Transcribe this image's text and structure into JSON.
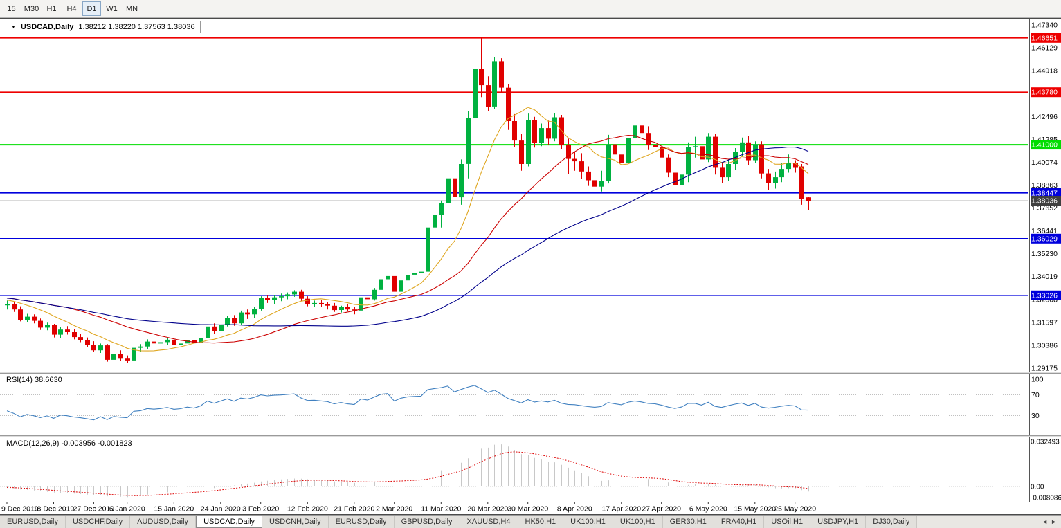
{
  "app": {
    "timeframe_toolbar": {
      "buttons": [
        "15",
        "M30",
        "H1",
        "H4",
        "D1",
        "W1",
        "MN"
      ],
      "active": "D1"
    },
    "chart_header": {
      "collapse_icon": "▼",
      "symbol": "USDCAD,Daily",
      "ohlc": "1.38212 1.38220 1.37563 1.38036"
    },
    "tab_bar": {
      "tabs": [
        "EURUSD,Daily",
        "USDCHF,Daily",
        "AUDUSD,Daily",
        "USDCAD,Daily",
        "USDCNH,Daily",
        "EURUSD,Daily",
        "GBPUSD,Daily",
        "XAUUSD,H4",
        "HK50,H1",
        "UK100,H1",
        "UK100,H1",
        "GER30,H1",
        "FRA40,H1",
        "USOil,H1",
        "USDJPY,H1",
        "DJ30,Daily"
      ],
      "active_index": 3,
      "scroll_left": "◄",
      "scroll_right": "►"
    }
  },
  "chart_data": {
    "type": "candlestick",
    "symbol": "USDCAD",
    "timeframe": "Daily",
    "colors": {
      "up": "#00b140",
      "down": "#e00000",
      "bg": "#ffffff"
    },
    "price_axis": {
      "min": 1.29175,
      "max": 1.4734,
      "ticks": [
        "1.47340",
        "1.46129",
        "1.44918",
        "1.43707",
        "1.42496",
        "1.41285",
        "1.40074",
        "1.38863",
        "1.37652",
        "1.36441",
        "1.35230",
        "1.34019",
        "1.32808",
        "1.31597",
        "1.30386",
        "1.29175"
      ]
    },
    "hlines": [
      {
        "price": 1.46651,
        "color": "#ee0000",
        "label": "1.46651",
        "width": 1.6
      },
      {
        "price": 1.4378,
        "color": "#ee0000",
        "label": "1.43780",
        "width": 1.6
      },
      {
        "price": 1.41,
        "color": "#00dd00",
        "label": "1.41000",
        "width": 2
      },
      {
        "price": 1.38447,
        "color": "#0000dd",
        "label": "1.38447",
        "width": 1.6
      },
      {
        "price": 1.36029,
        "color": "#0000dd",
        "label": "1.36029",
        "width": 1.6
      },
      {
        "price": 1.33026,
        "color": "#0000dd",
        "label": "1.33026",
        "width": 1.6
      }
    ],
    "current_price": {
      "price": 1.38036,
      "label": "1.38036",
      "badge_color": "#3f3f3f",
      "line_color": "#b4b4b4"
    },
    "moving_averages": [
      {
        "period": 10,
        "color": "#dfa620"
      },
      {
        "period": 25,
        "color": "#cc0000"
      },
      {
        "period": 50,
        "color": "#00008b"
      }
    ],
    "x_labels": [
      {
        "i": 0,
        "label": "9 Dec 2019"
      },
      {
        "i": 7,
        "label": "18 Dec 2019"
      },
      {
        "i": 13,
        "label": "27 Dec 2019"
      },
      {
        "i": 18,
        "label": "6 Jan 2020"
      },
      {
        "i": 25,
        "label": "15 Jan 2020"
      },
      {
        "i": 32,
        "label": "24 Jan 2020"
      },
      {
        "i": 38,
        "label": "3 Feb 2020"
      },
      {
        "i": 45,
        "label": "12 Feb 2020"
      },
      {
        "i": 52,
        "label": "21 Feb 2020"
      },
      {
        "i": 58,
        "label": "2 Mar 2020"
      },
      {
        "i": 65,
        "label": "11 Mar 2020"
      },
      {
        "i": 72,
        "label": "20 Mar 2020"
      },
      {
        "i": 78,
        "label": "30 Mar 2020"
      },
      {
        "i": 85,
        "label": "8 Apr 2020"
      },
      {
        "i": 92,
        "label": "17 Apr 2020"
      },
      {
        "i": 98,
        "label": "27 Apr 2020"
      },
      {
        "i": 105,
        "label": "6 May 2020"
      },
      {
        "i": 112,
        "label": "15 May 2020"
      },
      {
        "i": 118,
        "label": "25 May 2020"
      }
    ],
    "indicator_warmup": [
      1.3312,
      1.3298,
      1.332,
      1.3305,
      1.3288,
      1.331,
      1.3292,
      1.3275,
      1.3296,
      1.3282,
      1.3268,
      1.3288,
      1.3272,
      1.3285,
      1.3262
    ],
    "candles": [
      [
        1.325,
        1.3275,
        1.3228,
        1.3258
      ],
      [
        1.3258,
        1.327,
        1.3215,
        1.3228
      ],
      [
        1.3228,
        1.3245,
        1.3165,
        1.3172
      ],
      [
        1.3172,
        1.3205,
        1.316,
        1.319
      ],
      [
        1.319,
        1.3202,
        1.3155,
        1.3168
      ],
      [
        1.3168,
        1.318,
        1.312,
        1.3132
      ],
      [
        1.3132,
        1.3158,
        1.3118,
        1.3145
      ],
      [
        1.3145,
        1.3152,
        1.308,
        1.3095
      ],
      [
        1.3095,
        1.3135,
        1.3078,
        1.3122
      ],
      [
        1.3122,
        1.314,
        1.3095,
        1.3108
      ],
      [
        1.3108,
        1.3125,
        1.307,
        1.3082
      ],
      [
        1.3082,
        1.3098,
        1.3055,
        1.3065
      ],
      [
        1.3065,
        1.308,
        1.303,
        1.3042
      ],
      [
        1.3042,
        1.306,
        1.3005,
        1.3012
      ],
      [
        1.3012,
        1.3048,
        1.2998,
        1.3038
      ],
      [
        1.3038,
        1.3045,
        1.2952,
        1.2962
      ],
      [
        1.2962,
        1.3005,
        1.295,
        1.2992
      ],
      [
        1.2992,
        1.3012,
        1.2955,
        1.2968
      ],
      [
        1.2968,
        1.2985,
        1.2945,
        1.2958
      ],
      [
        1.2958,
        1.3032,
        1.2952,
        1.3025
      ],
      [
        1.3025,
        1.3045,
        1.3002,
        1.3032
      ],
      [
        1.3032,
        1.307,
        1.302,
        1.3058
      ],
      [
        1.3058,
        1.3072,
        1.3035,
        1.3048
      ],
      [
        1.3048,
        1.3065,
        1.3028,
        1.3055
      ],
      [
        1.3055,
        1.3078,
        1.304,
        1.3068
      ],
      [
        1.3068,
        1.3082,
        1.3028,
        1.3042
      ],
      [
        1.3042,
        1.306,
        1.3022,
        1.3048
      ],
      [
        1.3048,
        1.3075,
        1.3038,
        1.3065
      ],
      [
        1.3065,
        1.308,
        1.3042,
        1.3052
      ],
      [
        1.3052,
        1.3085,
        1.3045,
        1.3075
      ],
      [
        1.3075,
        1.3145,
        1.3068,
        1.3138
      ],
      [
        1.3138,
        1.3155,
        1.3098,
        1.3112
      ],
      [
        1.3112,
        1.3152,
        1.3105,
        1.3145
      ],
      [
        1.3145,
        1.3195,
        1.3138,
        1.3182
      ],
      [
        1.3182,
        1.3198,
        1.3142,
        1.3155
      ],
      [
        1.3155,
        1.3222,
        1.3148,
        1.3212
      ],
      [
        1.3212,
        1.3228,
        1.3178,
        1.3202
      ],
      [
        1.3202,
        1.3242,
        1.3182,
        1.3232
      ],
      [
        1.3232,
        1.3298,
        1.3222,
        1.3288
      ],
      [
        1.3288,
        1.3302,
        1.3262,
        1.3278
      ],
      [
        1.3278,
        1.3305,
        1.3258,
        1.3292
      ],
      [
        1.3292,
        1.3312,
        1.3272,
        1.3298
      ],
      [
        1.3298,
        1.3318,
        1.3282,
        1.3308
      ],
      [
        1.3308,
        1.333,
        1.3295,
        1.3322
      ],
      [
        1.3322,
        1.3332,
        1.3272,
        1.3285
      ],
      [
        1.3285,
        1.3298,
        1.3245,
        1.3258
      ],
      [
        1.3258,
        1.3275,
        1.324,
        1.3262
      ],
      [
        1.3262,
        1.3278,
        1.3242,
        1.3255
      ],
      [
        1.3255,
        1.3268,
        1.3228,
        1.3248
      ],
      [
        1.3248,
        1.3262,
        1.3215,
        1.3225
      ],
      [
        1.3225,
        1.3248,
        1.3212,
        1.3242
      ],
      [
        1.3242,
        1.3255,
        1.3218,
        1.3228
      ],
      [
        1.3228,
        1.3242,
        1.3202,
        1.3222
      ],
      [
        1.3222,
        1.3302,
        1.3215,
        1.3292
      ],
      [
        1.3292,
        1.3305,
        1.3262,
        1.3282
      ],
      [
        1.3282,
        1.3342,
        1.3275,
        1.3332
      ],
      [
        1.3332,
        1.3398,
        1.3322,
        1.3388
      ],
      [
        1.3388,
        1.3465,
        1.3378,
        1.3405
      ],
      [
        1.3405,
        1.3422,
        1.3305,
        1.3322
      ],
      [
        1.3322,
        1.3395,
        1.3312,
        1.3382
      ],
      [
        1.3382,
        1.3425,
        1.3342,
        1.3412
      ],
      [
        1.3412,
        1.3448,
        1.3388,
        1.3422
      ],
      [
        1.3422,
        1.3468,
        1.3402,
        1.3428
      ],
      [
        1.3428,
        1.372,
        1.3418,
        1.3662
      ],
      [
        1.3662,
        1.3748,
        1.3555,
        1.3728
      ],
      [
        1.3728,
        1.3805,
        1.3662,
        1.3792
      ],
      [
        1.3792,
        1.3998,
        1.3758,
        1.3922
      ],
      [
        1.3922,
        1.3952,
        1.3802,
        1.3822
      ],
      [
        1.3822,
        1.4022,
        1.3782,
        1.3998
      ],
      [
        1.3998,
        1.428,
        1.3922,
        1.4242
      ],
      [
        1.4242,
        1.4542,
        1.4182,
        1.4502
      ],
      [
        1.4502,
        1.4668,
        1.4352,
        1.4415
      ],
      [
        1.4415,
        1.4462,
        1.4278,
        1.4302
      ],
      [
        1.4302,
        1.4565,
        1.4288,
        1.4542
      ],
      [
        1.4542,
        1.4558,
        1.4378,
        1.4402
      ],
      [
        1.4402,
        1.4422,
        1.4178,
        1.4225
      ],
      [
        1.4225,
        1.4262,
        1.4088,
        1.4122
      ],
      [
        1.4122,
        1.4158,
        1.3962,
        1.3998
      ],
      [
        1.3998,
        1.4265,
        1.3985,
        1.4232
      ],
      [
        1.4232,
        1.4248,
        1.4085,
        1.4108
      ],
      [
        1.4108,
        1.4212,
        1.4092,
        1.4188
      ],
      [
        1.4188,
        1.4228,
        1.4098,
        1.4132
      ],
      [
        1.4132,
        1.4268,
        1.4118,
        1.4245
      ],
      [
        1.4245,
        1.4258,
        1.4078,
        1.4098
      ],
      [
        1.4098,
        1.4132,
        1.3945,
        1.4025
      ],
      [
        1.4025,
        1.4062,
        1.3962,
        1.4012
      ],
      [
        1.4012,
        1.4055,
        1.3918,
        1.3958
      ],
      [
        1.3958,
        1.3985,
        1.3882,
        1.3912
      ],
      [
        1.3912,
        1.3998,
        1.3858,
        1.3878
      ],
      [
        1.3878,
        1.3962,
        1.3852,
        1.3908
      ],
      [
        1.3908,
        1.4152,
        1.3895,
        1.4102
      ],
      [
        1.4102,
        1.4175,
        1.4022,
        1.4048
      ],
      [
        1.4048,
        1.4098,
        1.3952,
        1.4002
      ],
      [
        1.4002,
        1.4172,
        1.3988,
        1.4135
      ],
      [
        1.4135,
        1.4268,
        1.4112,
        1.4202
      ],
      [
        1.4202,
        1.4232,
        1.4102,
        1.4162
      ],
      [
        1.4162,
        1.4198,
        1.4072,
        1.4098
      ],
      [
        1.4098,
        1.4118,
        1.3992,
        1.4088
      ],
      [
        1.4088,
        1.4108,
        1.4002,
        1.4032
      ],
      [
        1.4032,
        1.4048,
        1.3928,
        1.3952
      ],
      [
        1.3952,
        1.4018,
        1.3862,
        1.3888
      ],
      [
        1.3888,
        1.3988,
        1.3848,
        1.3942
      ],
      [
        1.3942,
        1.4112,
        1.3902,
        1.4088
      ],
      [
        1.4088,
        1.4142,
        1.4032,
        1.4092
      ],
      [
        1.4092,
        1.4118,
        1.3988,
        1.4022
      ],
      [
        1.4022,
        1.4162,
        1.4008,
        1.4142
      ],
      [
        1.4142,
        1.4158,
        1.3942,
        1.3978
      ],
      [
        1.3978,
        1.4002,
        1.3898,
        1.3928
      ],
      [
        1.3928,
        1.4025,
        1.3908,
        1.3998
      ],
      [
        1.3998,
        1.4082,
        1.3968,
        1.4062
      ],
      [
        1.4062,
        1.4138,
        1.4035,
        1.4112
      ],
      [
        1.4112,
        1.4148,
        1.3992,
        1.4018
      ],
      [
        1.4018,
        1.4118,
        1.4002,
        1.4102
      ],
      [
        1.4102,
        1.4118,
        1.3922,
        1.3948
      ],
      [
        1.3948,
        1.3972,
        1.3862,
        1.3898
      ],
      [
        1.3898,
        1.3958,
        1.3868,
        1.3928
      ],
      [
        1.3928,
        1.4002,
        1.3902,
        1.3972
      ],
      [
        1.3972,
        1.4048,
        1.3952,
        1.4002
      ],
      [
        1.4002,
        1.4018,
        1.3952,
        1.3978
      ],
      [
        1.3985,
        1.3998,
        1.3782,
        1.3812
      ],
      [
        1.38212,
        1.3822,
        1.37563,
        1.38036
      ]
    ],
    "rsi": {
      "title": "RSI(14) 38.6630",
      "period": 14,
      "levels": [
        70,
        30
      ],
      "axis_labels": [
        "100",
        "70",
        "30"
      ],
      "color": "#4080c0"
    },
    "macd": {
      "title": "MACD(12,26,9) -0.003956 -0.001823",
      "fast": 12,
      "slow": 26,
      "signal": 9,
      "axis_max": 0.032493,
      "axis_min": -0.008086,
      "axis_labels": [
        "0.032493",
        "0.00",
        "-0.008086"
      ],
      "hist_color": "#c8c8c8",
      "signal_color": "#dd0000"
    }
  }
}
